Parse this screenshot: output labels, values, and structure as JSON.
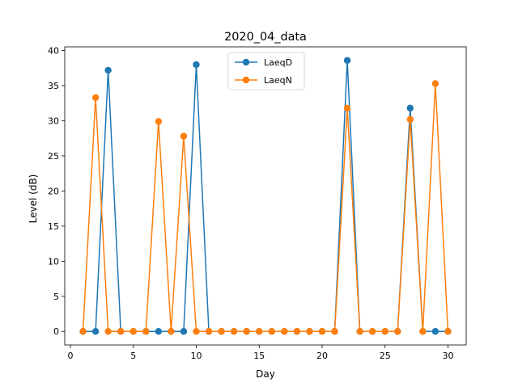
{
  "chart_data": {
    "type": "line",
    "title": "2020_04_data",
    "xlabel": "Day",
    "ylabel": "Level (dB)",
    "xlim": [
      -0.45,
      31.45
    ],
    "ylim": [
      -1.93,
      40.53
    ],
    "x_ticks": [
      0,
      5,
      10,
      15,
      20,
      25,
      30
    ],
    "y_ticks": [
      0,
      5,
      10,
      15,
      20,
      25,
      30,
      35,
      40
    ],
    "grid": false,
    "legend": "upper center",
    "x": [
      1,
      2,
      3,
      4,
      5,
      6,
      7,
      8,
      9,
      10,
      11,
      12,
      13,
      14,
      15,
      16,
      17,
      18,
      19,
      20,
      21,
      22,
      23,
      24,
      25,
      26,
      27,
      28,
      29,
      30
    ],
    "series": [
      {
        "name": "LaeqD",
        "color": "#1f77b4",
        "values": [
          0,
          0,
          37.2,
          0,
          0,
          0,
          0,
          0,
          0,
          38.0,
          0,
          0,
          0,
          0,
          0,
          0,
          0,
          0,
          0,
          0,
          0,
          38.6,
          0,
          0,
          0,
          0,
          31.8,
          0,
          0,
          0
        ]
      },
      {
        "name": "LaeqN",
        "color": "#ff7f0e",
        "values": [
          0,
          33.3,
          0,
          0,
          0,
          0,
          29.9,
          0,
          27.8,
          0,
          0,
          0,
          0,
          0,
          0,
          0,
          0,
          0,
          0,
          0,
          0,
          31.8,
          0,
          0,
          0,
          0,
          30.2,
          0,
          35.3,
          0
        ]
      }
    ]
  }
}
